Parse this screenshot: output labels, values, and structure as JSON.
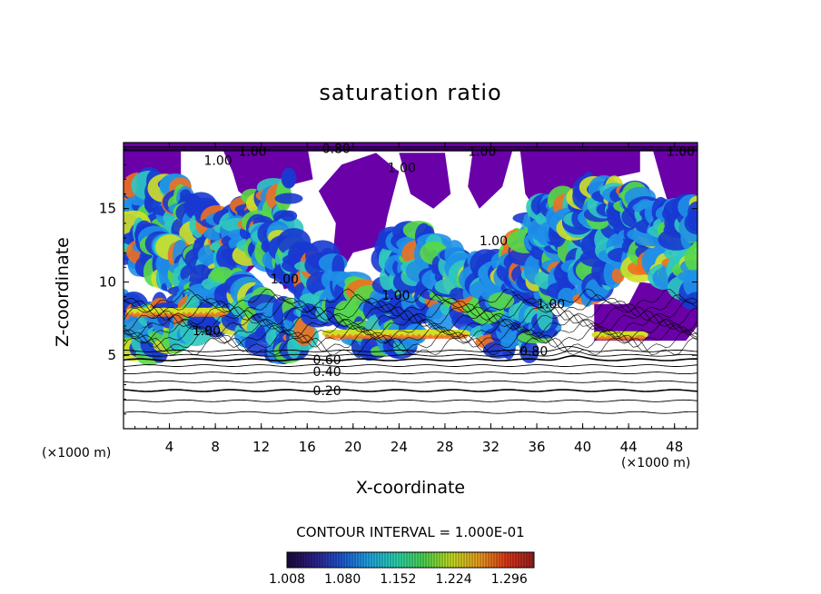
{
  "chart_data": {
    "type": "heatmap",
    "title": "saturation ratio",
    "xlabel": "X-coordinate",
    "ylabel": "Z-coordinate",
    "x_unit_left": "(×1000 m)",
    "x_unit_right": "(×1000 m)",
    "xlim": [
      0,
      50
    ],
    "ylim": [
      0,
      19.5
    ],
    "x_ticks": [
      4,
      8,
      12,
      16,
      20,
      24,
      28,
      32,
      36,
      40,
      44,
      48
    ],
    "y_ticks": [
      5,
      10,
      15
    ],
    "contour_interval_label": "CONTOUR INTERVAL = 1.000E-01",
    "contour_labels": [
      {
        "text": "0.20",
        "x": 16.5,
        "y": 2.6
      },
      {
        "text": "0.40",
        "x": 16.5,
        "y": 3.9
      },
      {
        "text": "0.60",
        "x": 16.5,
        "y": 4.7
      },
      {
        "text": "0.80",
        "x": 34.5,
        "y": 5.3
      },
      {
        "text": "1.00",
        "x": 6.0,
        "y": 6.7
      },
      {
        "text": "1.00",
        "x": 36.0,
        "y": 8.5
      },
      {
        "text": "1.00",
        "x": 22.5,
        "y": 9.1
      },
      {
        "text": "1.00",
        "x": 12.8,
        "y": 10.2
      },
      {
        "text": "1.00",
        "x": 31.0,
        "y": 12.8
      },
      {
        "text": "1.00",
        "x": 23.0,
        "y": 17.8
      },
      {
        "text": "1.00",
        "x": 7.0,
        "y": 18.3
      },
      {
        "text": "1.00",
        "x": 10.0,
        "y": 18.9
      },
      {
        "text": "0.80",
        "x": 17.3,
        "y": 19.1
      },
      {
        "text": "1.00",
        "x": 30.0,
        "y": 18.9
      },
      {
        "text": "1.00",
        "x": 47.3,
        "y": 18.9
      }
    ],
    "colorbar": {
      "ticks": [
        "1.008",
        "1.080",
        "1.152",
        "1.224",
        "1.296"
      ],
      "colors": [
        "#1a0a3a",
        "#2e1f8a",
        "#1f5ad8",
        "#1fa8e8",
        "#2ad8b0",
        "#4fd84f",
        "#c8e020",
        "#f0a020",
        "#e03818",
        "#9a2020"
      ]
    },
    "subsaturated_fill_color": "#6a00a8",
    "high_sat_colors": [
      "#1838d0",
      "#1f90e8",
      "#30c8c0",
      "#58d848",
      "#d0e028",
      "#f07020"
    ]
  }
}
